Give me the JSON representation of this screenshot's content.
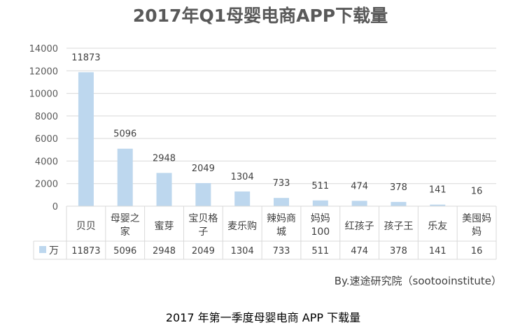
{
  "chart_data": {
    "type": "bar",
    "title": "2017年Q1母婴电商APP下载量",
    "categories": [
      [
        "贝贝"
      ],
      [
        "母婴之",
        "家"
      ],
      [
        "蜜芽"
      ],
      [
        "宝贝格",
        "子"
      ],
      [
        "麦乐购"
      ],
      [
        "辣妈商",
        "城"
      ],
      [
        "妈妈",
        "100"
      ],
      [
        "红孩子"
      ],
      [
        "孩子王"
      ],
      [
        "乐友"
      ],
      [
        "美囤妈",
        "妈"
      ]
    ],
    "series": [
      {
        "name": "万",
        "color": "#bdd7ee",
        "values": [
          11873,
          5096,
          2948,
          2049,
          1304,
          733,
          511,
          474,
          378,
          141,
          16
        ],
        "labels": [
          "11873",
          "5096",
          "2948",
          "2049",
          "1304",
          "733",
          "511",
          "474",
          "378",
          "141",
          "16"
        ]
      }
    ],
    "ylim": [
      0,
      14000
    ],
    "yticks": [
      "0",
      "2000",
      "4000",
      "6000",
      "8000",
      "10000",
      "12000",
      "14000"
    ],
    "grid": true,
    "data_table": true
  },
  "source_text": "By.速途研究院（sootooinstitute）",
  "caption": "2017 年第一季度母婴电商 APP 下载量"
}
